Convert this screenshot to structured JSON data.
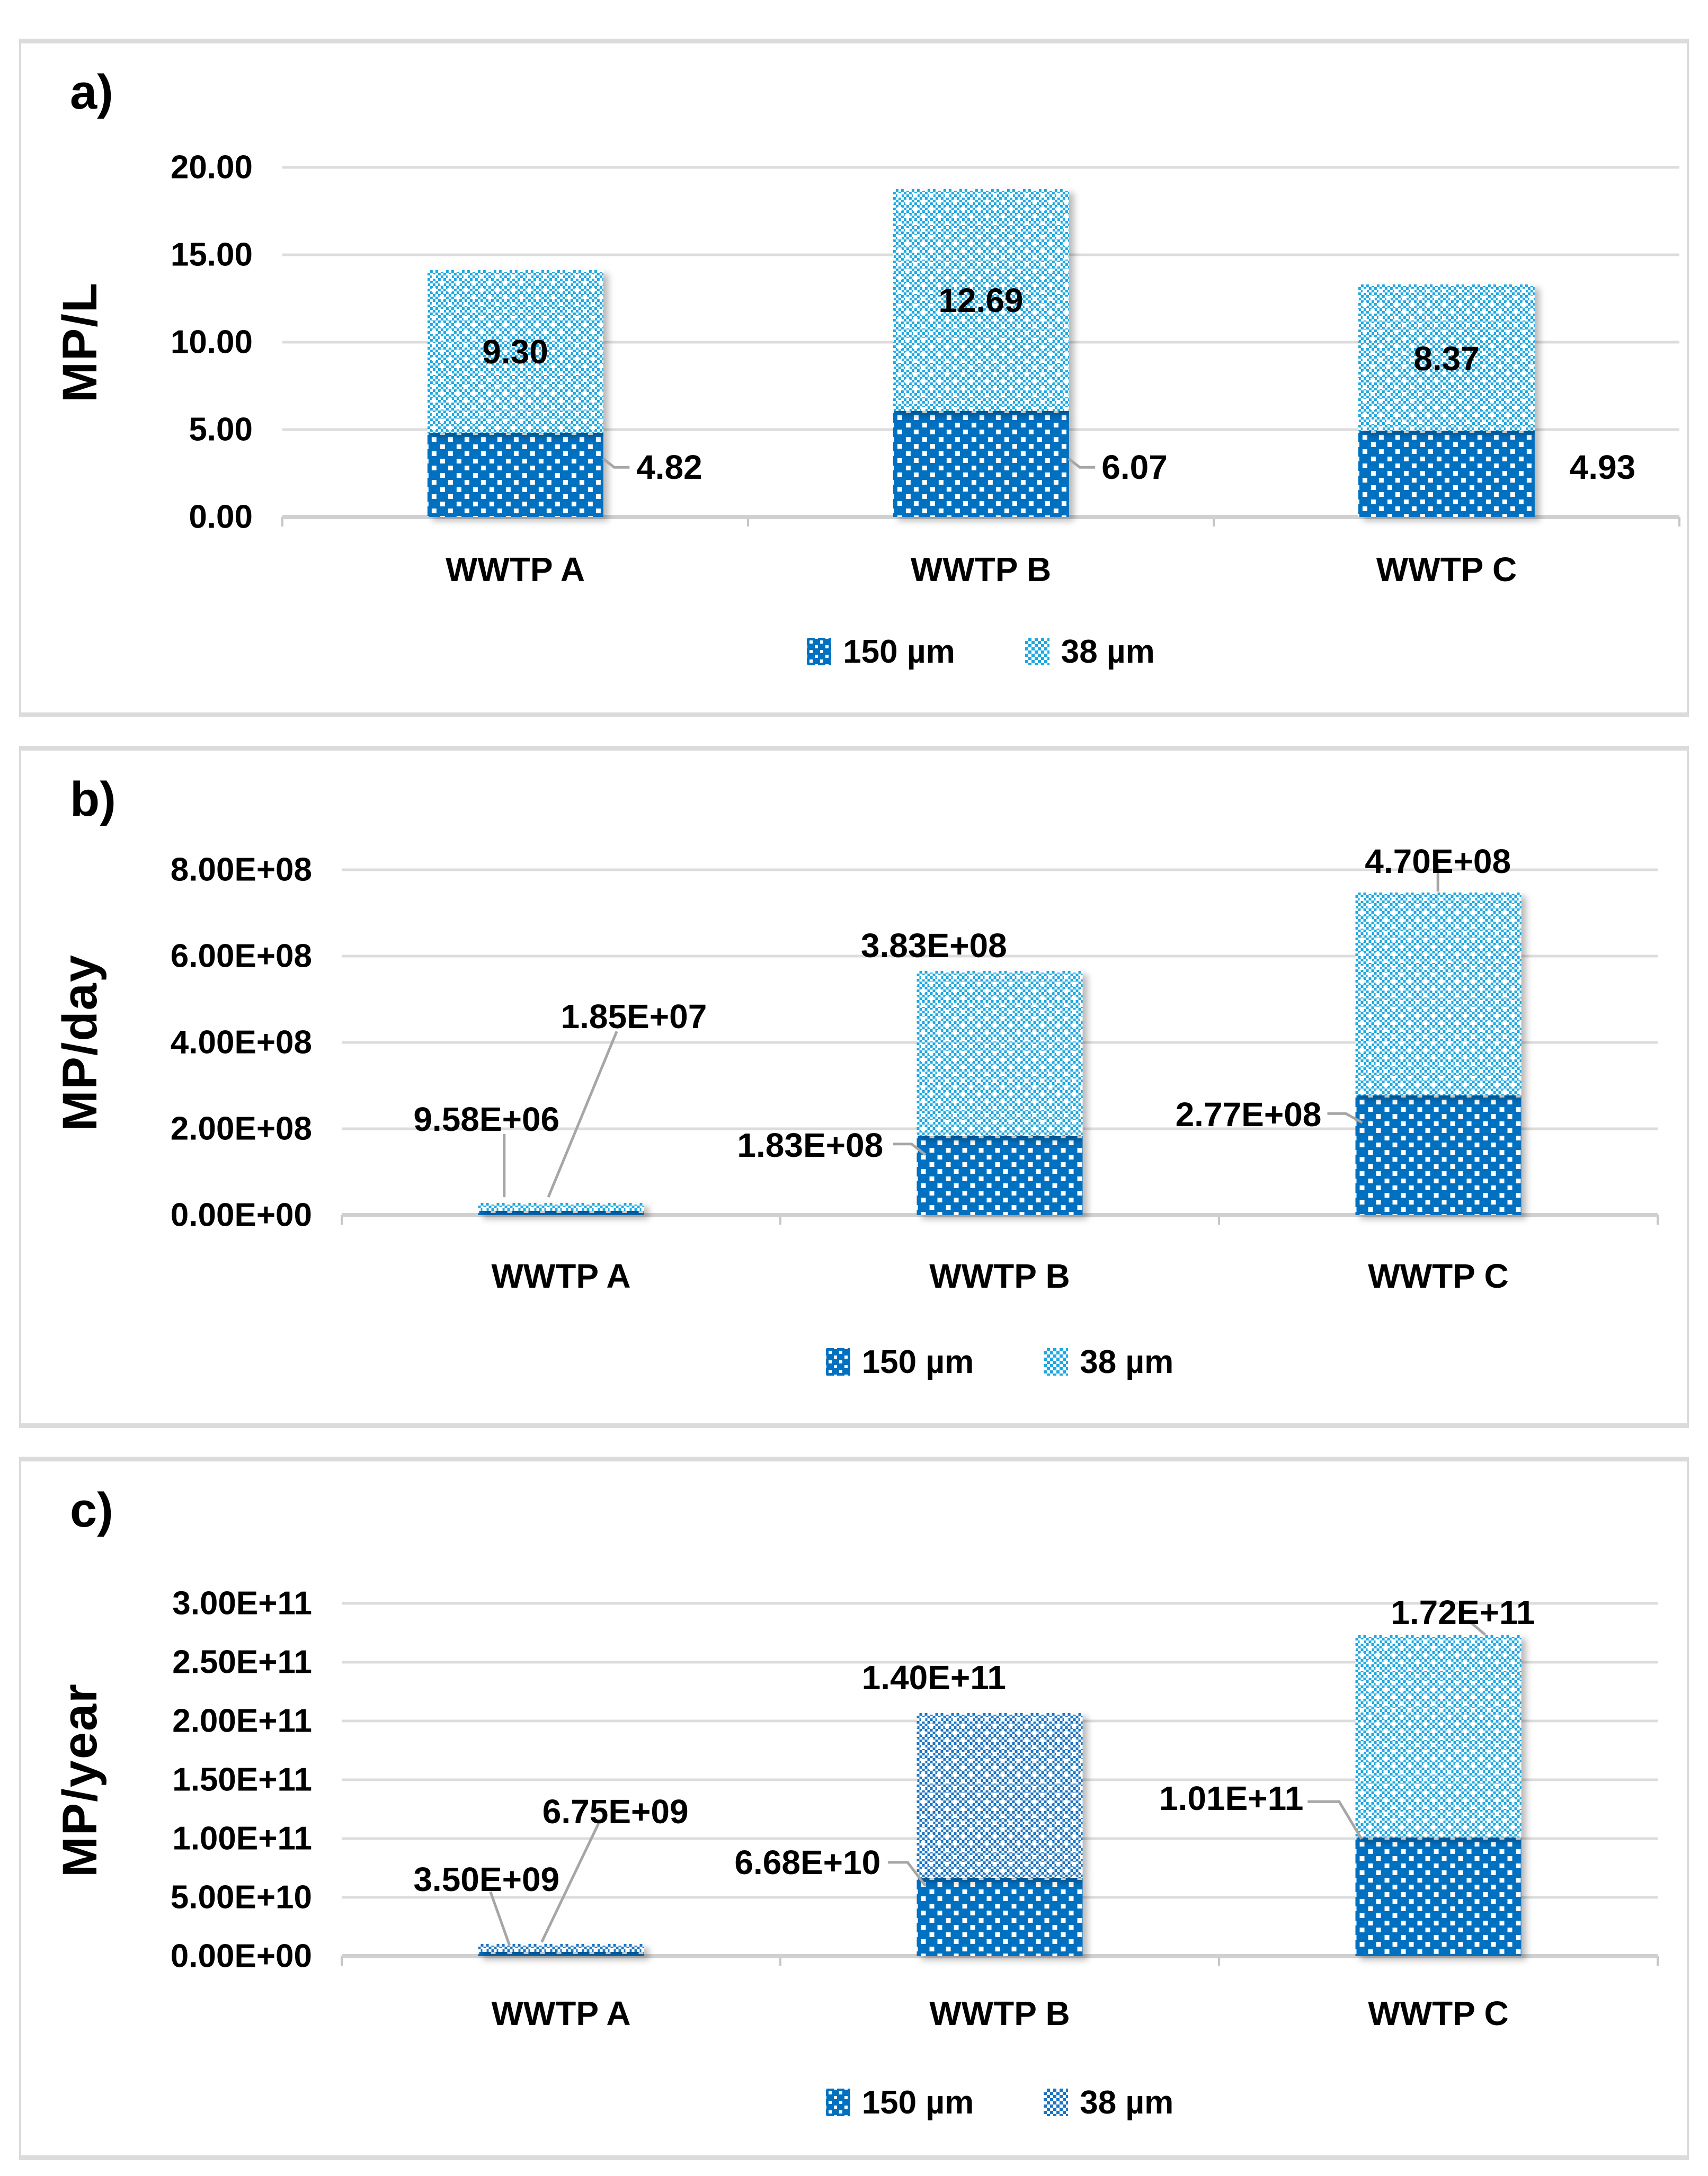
{
  "colors": {
    "bar_150um": "#0070C0",
    "bar_38um_light_checker": "#1FA8E1",
    "bar_38um_dark_checker": "#1C75C4",
    "gridline": "#DCDCDC",
    "axis_baseline": "#D0D0D0",
    "leader_line": "#A6A6A6",
    "panel_border": "#DBDBDB",
    "label_text": "#000000"
  },
  "chart_data": [
    {
      "type": "bar",
      "stacked": true,
      "panel_label": "a)",
      "ylabel": "MP/L",
      "categories": [
        "WWTP A",
        "WWTP B",
        "WWTP C"
      ],
      "series": [
        {
          "name": "150 µm",
          "values": [
            4.82,
            6.07,
            4.93
          ]
        },
        {
          "name": "38 µm",
          "values": [
            9.3,
            12.69,
            8.37
          ]
        }
      ],
      "totals": [
        14.12,
        18.76,
        13.3
      ],
      "ylim": [
        0,
        20
      ],
      "ytick_step": 5,
      "yticks": [
        "20.00",
        "15.00",
        "10.00",
        "5.00",
        "0.00"
      ],
      "grid": true,
      "legend_position": "bottom",
      "data_labels": {
        "s150": [
          "4.82",
          "6.07",
          "4.93"
        ],
        "s38": [
          "9.30",
          "12.69",
          "8.37"
        ]
      }
    },
    {
      "type": "bar",
      "stacked": true,
      "panel_label": "b)",
      "ylabel": "MP/day",
      "categories": [
        "WWTP A",
        "WWTP B",
        "WWTP C"
      ],
      "series": [
        {
          "name": "150 µm",
          "values": [
            9580000.0,
            183000000.0,
            277000000.0
          ]
        },
        {
          "name": "38 µm",
          "values": [
            18500000.0,
            383000000.0,
            470000000.0
          ]
        }
      ],
      "totals": [
        28080000.0,
        566000000.0,
        747000000.0
      ],
      "ylim": [
        0,
        800000000.0
      ],
      "ytick_step": 200000000.0,
      "yticks": [
        "8.00E+08",
        "6.00E+08",
        "4.00E+08",
        "2.00E+08",
        "0.00E+00"
      ],
      "grid": true,
      "legend_position": "bottom",
      "data_labels": {
        "s150": [
          "9.58E+06",
          "1.83E+08",
          "2.77E+08"
        ],
        "s38": [
          "1.85E+07",
          "3.83E+08",
          "4.70E+08"
        ]
      }
    },
    {
      "type": "bar",
      "stacked": true,
      "panel_label": "c)",
      "ylabel": "MP/year",
      "categories": [
        "WWTP A",
        "WWTP B",
        "WWTP C"
      ],
      "series": [
        {
          "name": "150 µm",
          "values": [
            3500000000.0,
            66800000000.0,
            101000000000.0
          ]
        },
        {
          "name": "38 µm",
          "values": [
            6750000000.0,
            140000000000.0,
            172000000000.0
          ]
        }
      ],
      "totals": [
        10250000000.0,
        206800000000.0,
        273000000000.0
      ],
      "ylim": [
        0,
        300000000000.0
      ],
      "ytick_step": 50000000000.0,
      "yticks": [
        "3.00E+11",
        "2.50E+11",
        "2.00E+11",
        "1.50E+11",
        "1.00E+11",
        "5.00E+10",
        "0.00E+00"
      ],
      "grid": true,
      "legend_position": "bottom",
      "data_labels": {
        "s150": [
          "3.50E+09",
          "6.68E+10",
          "1.01E+11"
        ],
        "s38": [
          "6.75E+09",
          "1.40E+11",
          "1.72E+11"
        ]
      }
    }
  ]
}
